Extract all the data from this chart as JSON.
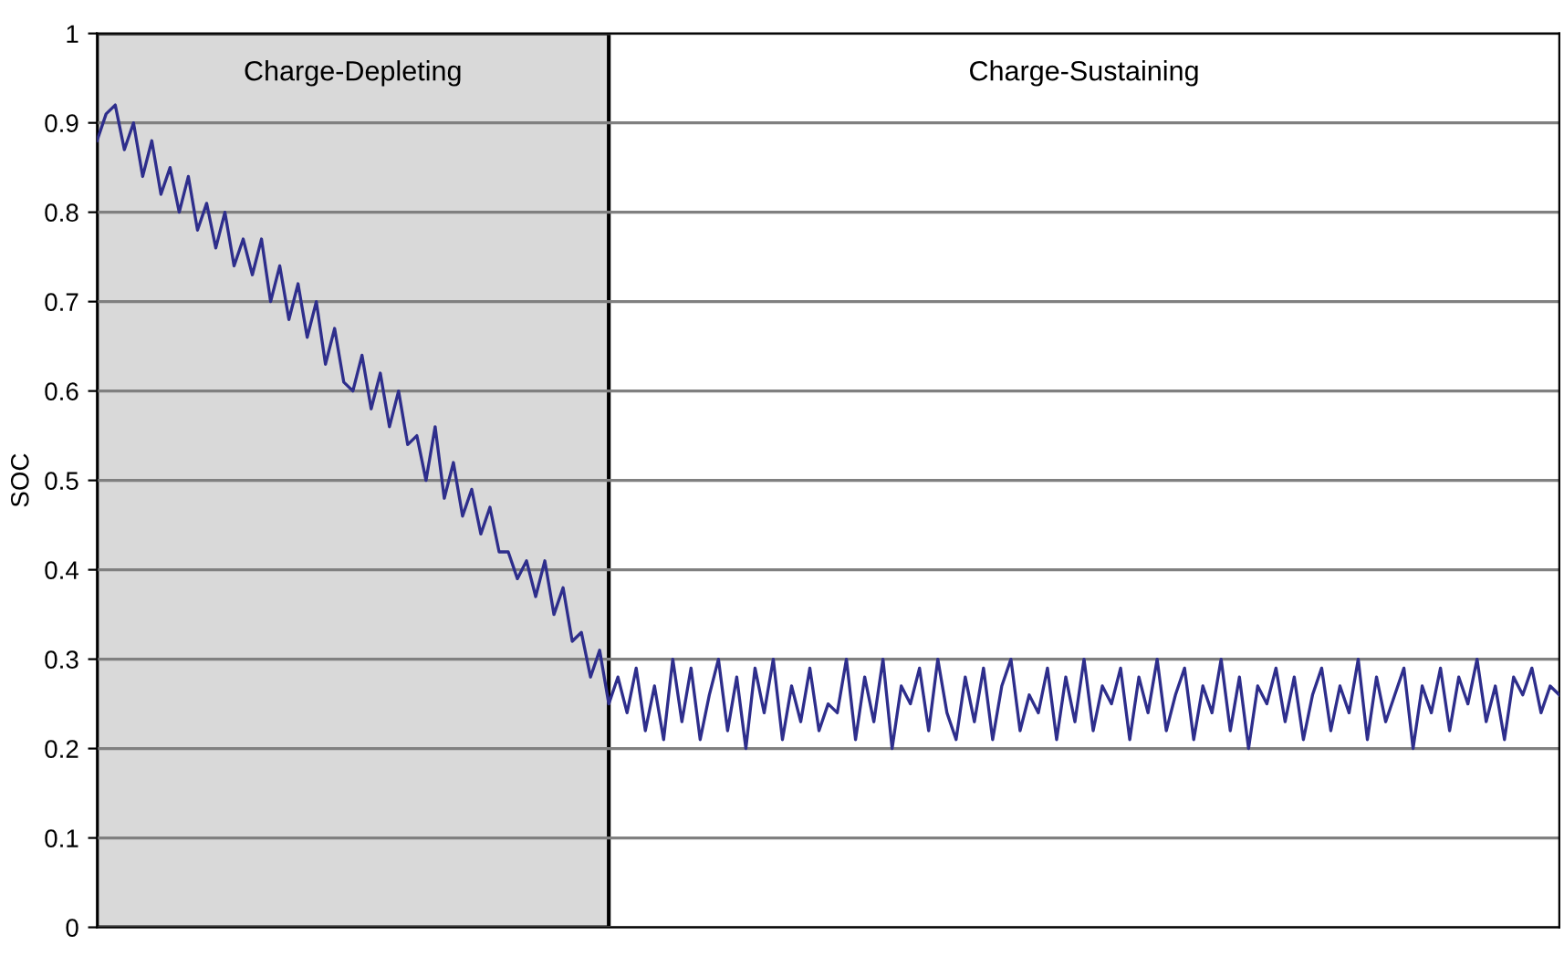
{
  "chart_data": {
    "type": "line",
    "ylabel": "SOC",
    "ylim": [
      0,
      1
    ],
    "yticks": [
      0,
      0.1,
      0.2,
      0.3,
      0.4,
      0.5,
      0.6,
      0.7,
      0.8,
      0.9,
      1
    ],
    "grid": "y",
    "tick_labels": "y",
    "legend": false,
    "categories": [
      null,
      null,
      null,
      null,
      null,
      null,
      null,
      null,
      null,
      null,
      null,
      null,
      null,
      null,
      null,
      null,
      null,
      null,
      null,
      null,
      null,
      null,
      null,
      null,
      null,
      null,
      null,
      null,
      null,
      null,
      null,
      null,
      null,
      null,
      null,
      null,
      null,
      null,
      null,
      null,
      null,
      null,
      null,
      null,
      null,
      null,
      null,
      null,
      null,
      null,
      null,
      null,
      null,
      null,
      null,
      null,
      null,
      null,
      null,
      null,
      null,
      null,
      null,
      null,
      null,
      null,
      null,
      null,
      null,
      null,
      null,
      null,
      null,
      null,
      null,
      null,
      null,
      null,
      null,
      null,
      null,
      null,
      null,
      null,
      null,
      null,
      null,
      null,
      null,
      null,
      null,
      null,
      null,
      null,
      null,
      null,
      null,
      null,
      null,
      null,
      null,
      null,
      null,
      null,
      null,
      null,
      null,
      null,
      null,
      null,
      null,
      null,
      null,
      null,
      null,
      null,
      null,
      null,
      null,
      null,
      null,
      null,
      null,
      null,
      null,
      null,
      null,
      null,
      null,
      null,
      null,
      null,
      null,
      null,
      null,
      null,
      null,
      null,
      null,
      null,
      null,
      null,
      null,
      null,
      null,
      null,
      null,
      null,
      null,
      null,
      null,
      null,
      null,
      null,
      null,
      null,
      null,
      null,
      null,
      null,
      null
    ],
    "series": [
      {
        "color": "#2e2e8c",
        "values": [
          0.88,
          0.91,
          0.92,
          0.87,
          0.9,
          0.84,
          0.88,
          0.82,
          0.85,
          0.8,
          0.84,
          0.78,
          0.81,
          0.76,
          0.8,
          0.74,
          0.77,
          0.73,
          0.77,
          0.7,
          0.74,
          0.68,
          0.72,
          0.66,
          0.7,
          0.63,
          0.67,
          0.61,
          0.6,
          0.64,
          0.58,
          0.62,
          0.56,
          0.6,
          0.54,
          0.55,
          0.5,
          0.56,
          0.48,
          0.52,
          0.46,
          0.49,
          0.44,
          0.47,
          0.42,
          0.42,
          0.39,
          0.41,
          0.37,
          0.41,
          0.35,
          0.38,
          0.32,
          0.33,
          0.28,
          0.31,
          0.25,
          0.28,
          0.24,
          0.29,
          0.22,
          0.27,
          0.21,
          0.3,
          0.23,
          0.29,
          0.21,
          0.26,
          0.3,
          0.22,
          0.28,
          0.2,
          0.29,
          0.24,
          0.3,
          0.21,
          0.27,
          0.23,
          0.29,
          0.22,
          0.25,
          0.24,
          0.3,
          0.21,
          0.28,
          0.23,
          0.3,
          0.2,
          0.27,
          0.25,
          0.29,
          0.22,
          0.3,
          0.24,
          0.21,
          0.28,
          0.23,
          0.29,
          0.21,
          0.27,
          0.3,
          0.22,
          0.26,
          0.24,
          0.29,
          0.21,
          0.28,
          0.23,
          0.3,
          0.22,
          0.27,
          0.25,
          0.29,
          0.21,
          0.28,
          0.24,
          0.3,
          0.22,
          0.26,
          0.29,
          0.21,
          0.27,
          0.24,
          0.3,
          0.22,
          0.28,
          0.2,
          0.27,
          0.25,
          0.29,
          0.23,
          0.28,
          0.21,
          0.26,
          0.29,
          0.22,
          0.27,
          0.24,
          0.3,
          0.21,
          0.28,
          0.23,
          0.26,
          0.29,
          0.2,
          0.27,
          0.24,
          0.29,
          0.22,
          0.28,
          0.25,
          0.3,
          0.23,
          0.27,
          0.21,
          0.28,
          0.26,
          0.29,
          0.24,
          0.27,
          0.26
        ]
      }
    ],
    "annotations": [
      "Charge-Depleting",
      "Charge-Sustaining"
    ]
  }
}
